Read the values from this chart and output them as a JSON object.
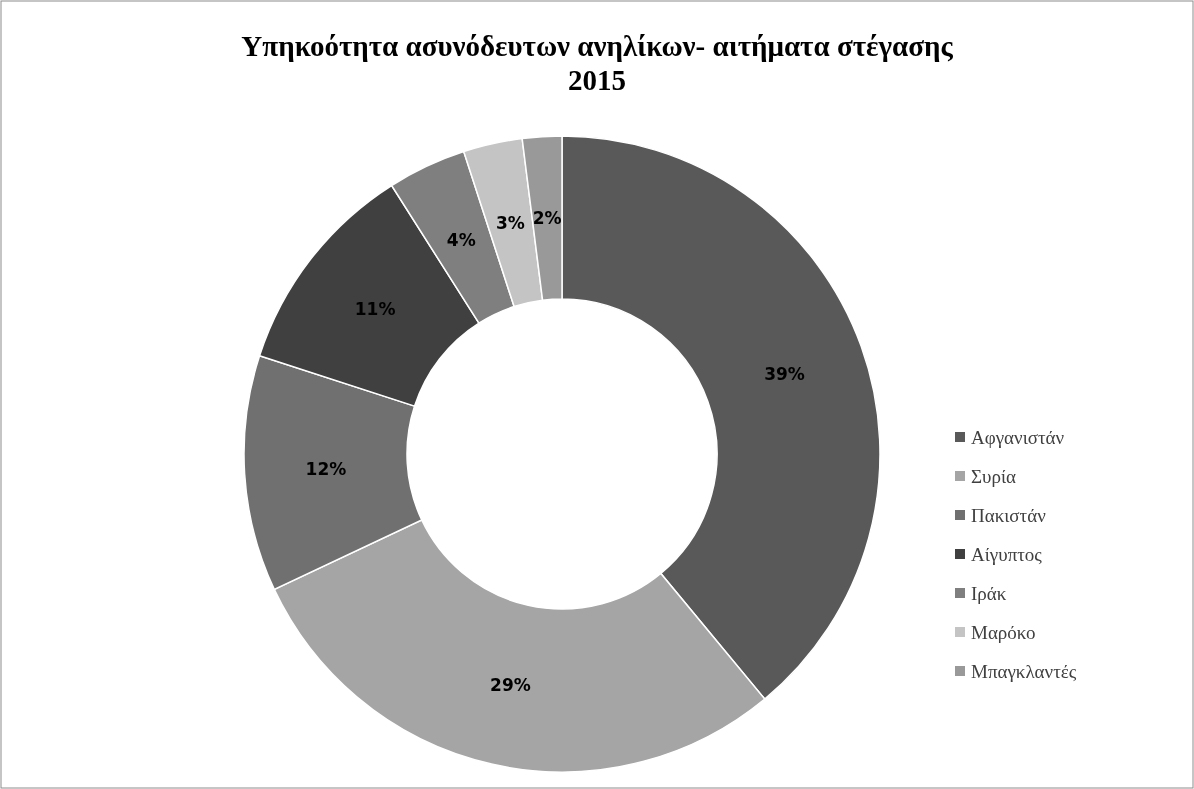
{
  "chart_data": {
    "type": "donut",
    "title": "Υπηκοότητα ασυνόδευτων ανηλίκων- αιτήματα στέγασης 2015",
    "categories": [
      "Αφγανιστάν",
      "Συρία",
      "Πακιστάν",
      "Αίγυπτος",
      "Ιράκ",
      "Μαρόκο",
      "Μπαγκλαντές"
    ],
    "values": [
      39,
      29,
      12,
      11,
      4,
      3,
      2
    ],
    "colors": [
      "#595959",
      "#a5a5a5",
      "#707070",
      "#404040",
      "#7f7f7f",
      "#c4c4c4",
      "#999999"
    ],
    "value_labels": [
      "39%",
      "29%",
      "12%",
      "11%",
      "4%",
      "3%",
      "2%"
    ],
    "legend": "right"
  }
}
